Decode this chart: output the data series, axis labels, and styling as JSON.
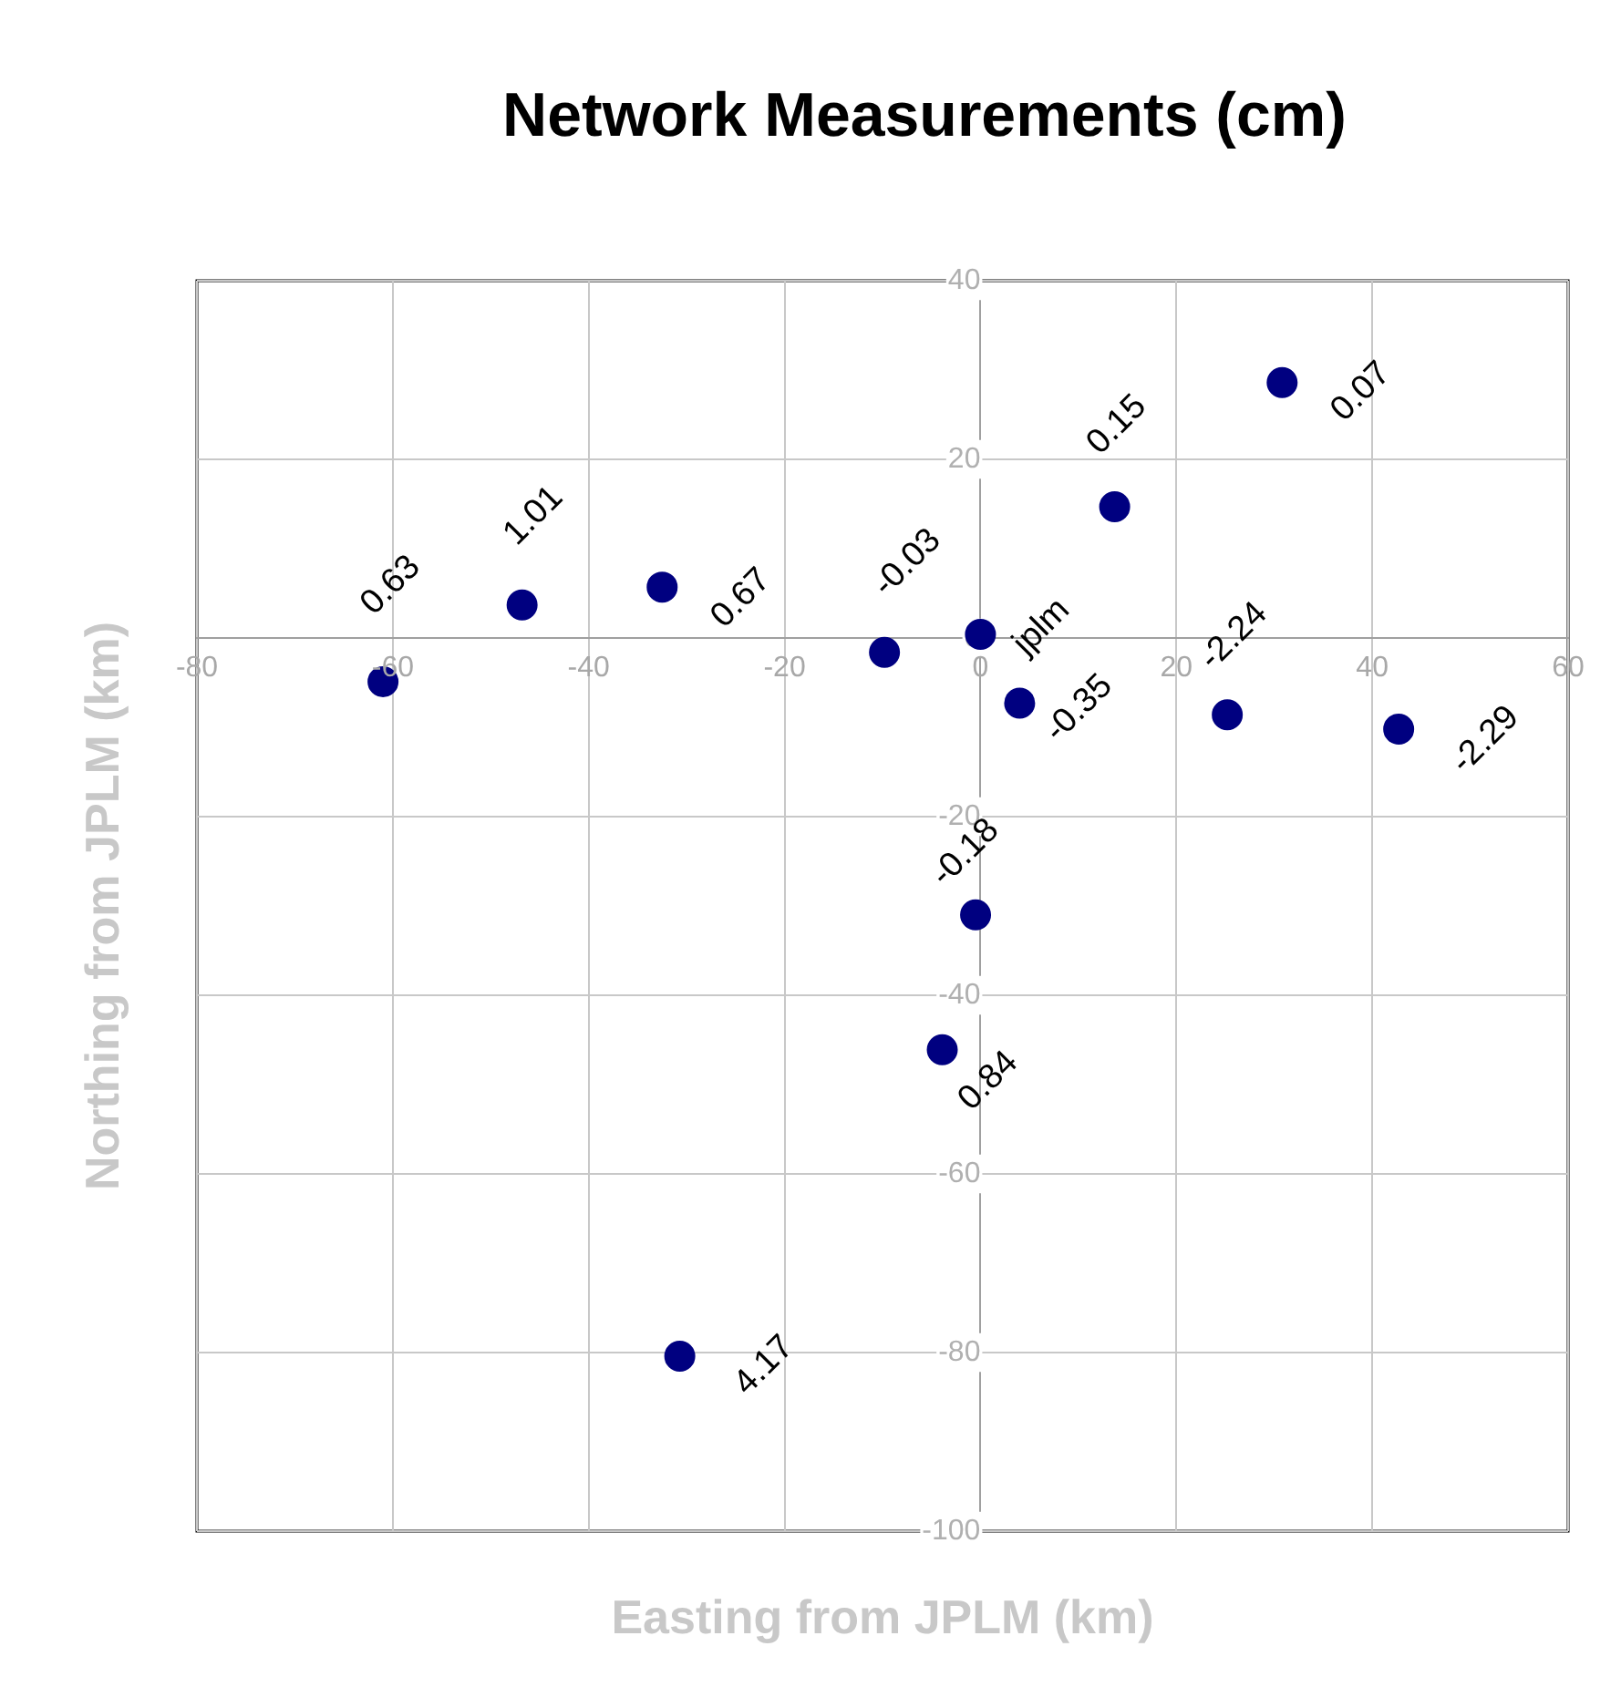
{
  "chart_data": {
    "type": "scatter",
    "title": "Network Measurements (cm)",
    "xlabel": "Easting from JPLM (km)",
    "ylabel": "Northing from JPLM (km)",
    "x": [
      -61.0,
      -46.8,
      -32.5,
      -9.8,
      0,
      4.0,
      13.7,
      30.8,
      25.2,
      42.7,
      -0.5,
      -3.9,
      -30.7
    ],
    "series": [
      {
        "color": "#000080",
        "values": [
          -4.9,
          3.7,
          5.7,
          -1.6,
          0.4,
          -7.3,
          14.7,
          28.6,
          -8.6,
          -10.2,
          -31.0,
          -46.1,
          -80.4
        ]
      }
    ],
    "annotations": [
      {
        "text": "0.63",
        "x": -61.0,
        "y": -4.9
      },
      {
        "text": "1.01",
        "x": -46.8,
        "y": 3.7
      },
      {
        "text": "0.67",
        "x": -32.5,
        "y": 5.7
      },
      {
        "text": "-0.03",
        "x": -9.8,
        "y": -1.6
      },
      {
        "text": "jplm",
        "x": 0,
        "y": 0.4
      },
      {
        "text": "-0.35",
        "x": 4.0,
        "y": -7.3
      },
      {
        "text": "0.15",
        "x": 13.7,
        "y": 14.7
      },
      {
        "text": "0.07",
        "x": 30.8,
        "y": 28.6
      },
      {
        "text": "-2.24",
        "x": 25.2,
        "y": -8.6
      },
      {
        "text": "-2.29",
        "x": 42.7,
        "y": -10.2
      },
      {
        "text": "-0.18",
        "x": -0.5,
        "y": -31.0
      },
      {
        "text": "0.84",
        "x": -3.9,
        "y": -46.1
      },
      {
        "text": "4.17",
        "x": -30.7,
        "y": -80.4
      }
    ],
    "xlim": [
      -80,
      60
    ],
    "xticks": [
      -80,
      -60,
      -40,
      -20,
      0,
      20,
      40,
      60
    ],
    "ylim": [
      -100,
      40
    ],
    "yticks": [
      -100,
      -80,
      -60,
      -40,
      -20,
      0,
      20,
      40
    ],
    "grid": true,
    "marker": "circle",
    "legend": false
  }
}
